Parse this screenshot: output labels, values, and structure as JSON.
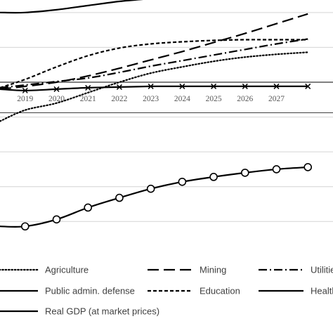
{
  "chart_data": {
    "type": "line",
    "title": "",
    "xlabel": "",
    "ylabel": "",
    "x_view_range": [
      2018.2,
      2028.8
    ],
    "y_view_range": [
      -2.35,
      1.18
    ],
    "grid": "horizontal",
    "legend_placement": "bottom",
    "categories": [
      "2019",
      "2020",
      "2021",
      "2022",
      "2023",
      "2024",
      "2025",
      "2026",
      "2027"
    ],
    "series": [
      {
        "name": "Agriculture",
        "style": "dotted",
        "color": "#000000",
        "x": [
          2018.2,
          2019,
          2020,
          2021,
          2022,
          2023,
          2024,
          2025,
          2026,
          2027,
          2028
        ],
        "values": [
          -0.56,
          -0.4,
          -0.3,
          -0.15,
          0.0,
          0.13,
          0.22,
          0.3,
          0.36,
          0.4,
          0.43
        ]
      },
      {
        "name": "Mining",
        "style": "long-dash",
        "color": "#000000",
        "x": [
          2018.2,
          2019,
          2020,
          2021,
          2022,
          2023,
          2024,
          2025,
          2026,
          2027,
          2028
        ],
        "values": [
          -0.1,
          -0.06,
          0.0,
          0.09,
          0.2,
          0.32,
          0.44,
          0.57,
          0.7,
          0.84,
          0.98
        ]
      },
      {
        "name": "Utilities",
        "style": "dash-dot",
        "color": "#000000",
        "x": [
          2018.2,
          2019,
          2020,
          2021,
          2022,
          2023,
          2024,
          2025,
          2026,
          2027,
          2028
        ],
        "values": [
          -0.08,
          -0.04,
          0.01,
          0.06,
          0.14,
          0.23,
          0.31,
          0.39,
          0.47,
          0.55,
          0.62
        ]
      },
      {
        "name": "Public admin. defense",
        "style": "solid",
        "color": "#000000",
        "marker": "x",
        "x": [
          2018.2,
          2019,
          2020,
          2021,
          2022,
          2023,
          2024,
          2025,
          2026,
          2027,
          2028
        ],
        "values": [
          -0.1,
          -0.12,
          -0.1,
          -0.08,
          -0.07,
          -0.06,
          -0.06,
          -0.06,
          -0.06,
          -0.06,
          -0.06
        ]
      },
      {
        "name": "Education",
        "style": "short-dash",
        "color": "#000000",
        "x": [
          2018.2,
          2019,
          2020,
          2021,
          2022,
          2023,
          2024,
          2025,
          2026,
          2027,
          2028
        ],
        "values": [
          -0.08,
          0.04,
          0.22,
          0.38,
          0.49,
          0.55,
          0.58,
          0.6,
          0.61,
          0.61,
          0.61
        ]
      },
      {
        "name": "Health",
        "style": "solid",
        "color": "#000000",
        "x": [
          2018.2,
          2019,
          2020,
          2021,
          2022,
          2023,
          2024,
          2025,
          2026,
          2027,
          2028
        ],
        "values": [
          1.0,
          1.0,
          1.04,
          1.1,
          1.16,
          1.2,
          1.24,
          1.28,
          1.3,
          1.33,
          1.36
        ]
      },
      {
        "name": "Real GDP (at market prices)",
        "style": "solid",
        "color": "#000000",
        "marker": "o",
        "x": [
          2018.2,
          2019,
          2020,
          2021,
          2022,
          2023,
          2024,
          2025,
          2026,
          2027,
          2028
        ],
        "values": [
          -2.07,
          -2.07,
          -1.97,
          -1.8,
          -1.66,
          -1.53,
          -1.43,
          -1.36,
          -1.3,
          -1.25,
          -1.22
        ]
      }
    ]
  }
}
